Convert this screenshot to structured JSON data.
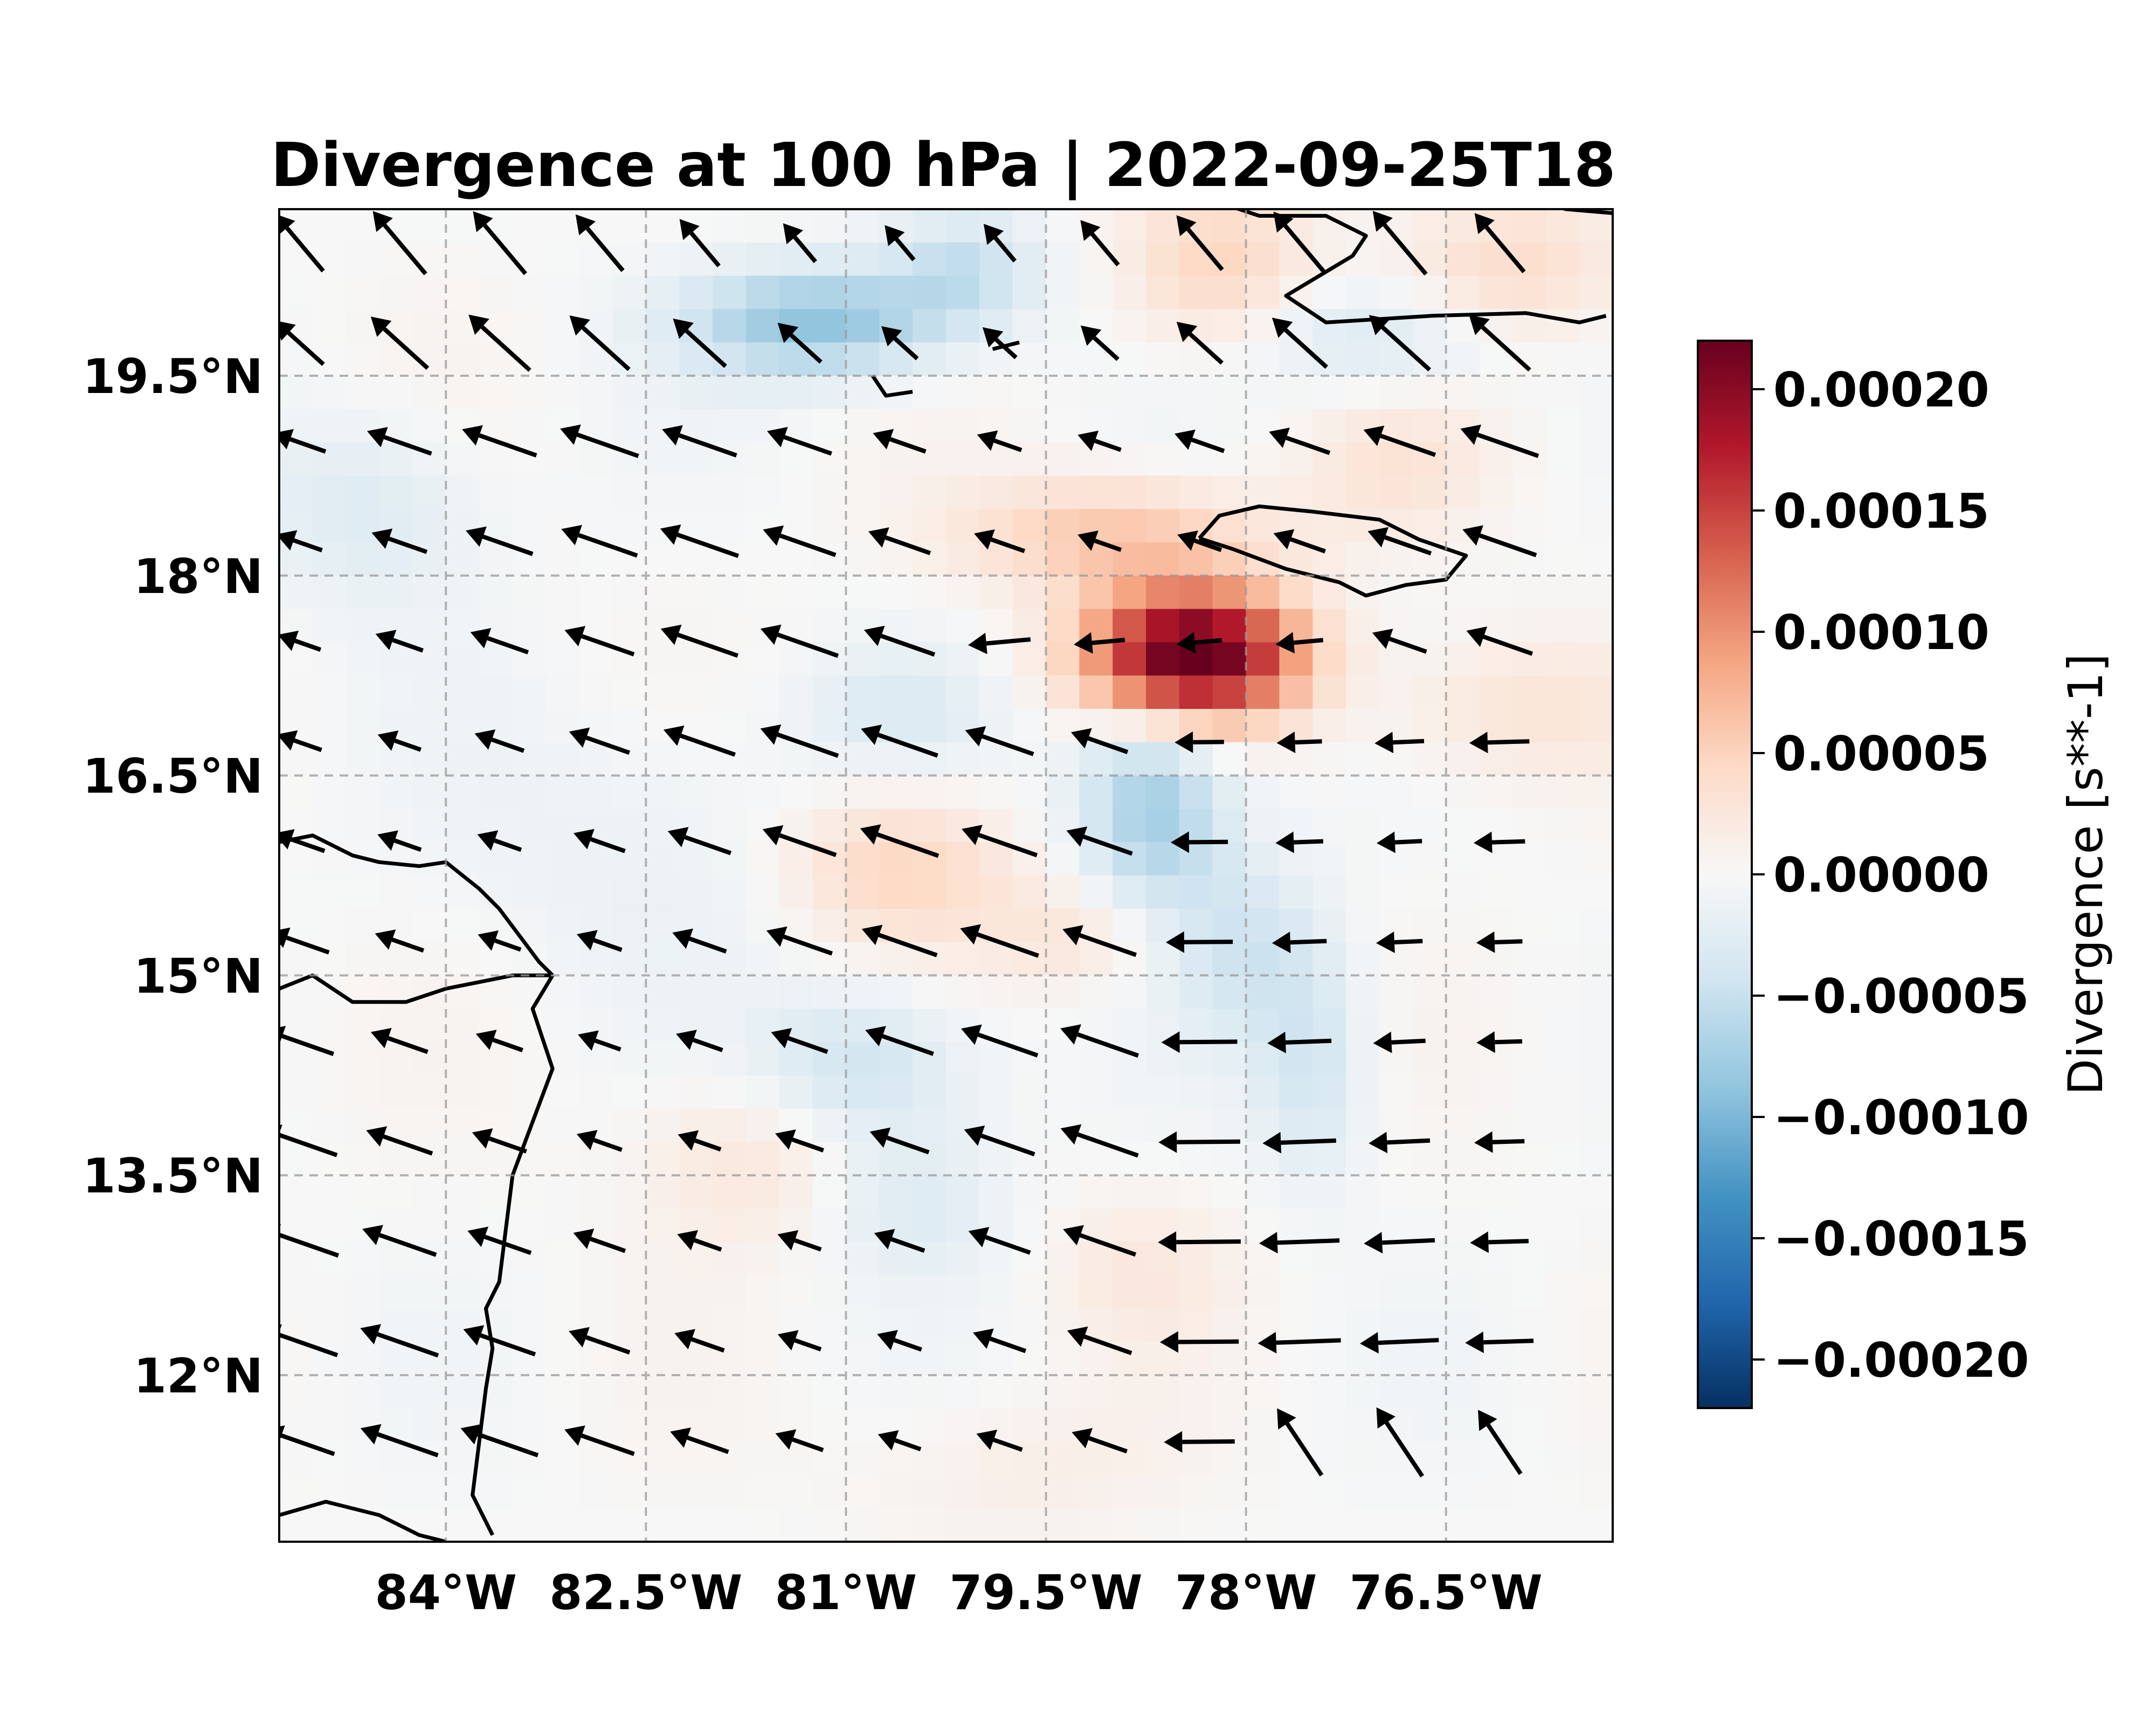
{
  "title": "Divergence at 100 hPa | 2022-09-25T18",
  "colorbar": {
    "label": "Divergence [s**-1]",
    "ticks": [
      {
        "value": 0.0002,
        "label": "0.00020"
      },
      {
        "value": 0.00015,
        "label": "0.00015"
      },
      {
        "value": 0.0001,
        "label": "0.00010"
      },
      {
        "value": 5e-05,
        "label": "0.00005"
      },
      {
        "value": 0.0,
        "label": "0.00000"
      },
      {
        "value": -5e-05,
        "label": "−0.00005"
      },
      {
        "value": -0.0001,
        "label": "−0.00010"
      },
      {
        "value": -0.00015,
        "label": "−0.00015"
      },
      {
        "value": -0.0002,
        "label": "−0.00020"
      }
    ],
    "range": [
      -0.00022,
      0.00022
    ],
    "colormap": "RdBu_r"
  },
  "map": {
    "lon_range": [
      -85.25,
      -75.25
    ],
    "lat_range": [
      10.75,
      20.75
    ],
    "lon_ticks": [
      {
        "value": -84,
        "label": "84°W"
      },
      {
        "value": -82.5,
        "label": "82.5°W"
      },
      {
        "value": -81,
        "label": "81°W"
      },
      {
        "value": -79.5,
        "label": "79.5°W"
      },
      {
        "value": -78,
        "label": "78°W"
      },
      {
        "value": -76.5,
        "label": "76.5°W"
      }
    ],
    "lat_ticks": [
      {
        "value": 19.5,
        "label": "19.5°N"
      },
      {
        "value": 18,
        "label": "18°N"
      },
      {
        "value": 16.5,
        "label": "16.5°N"
      },
      {
        "value": 15,
        "label": "15°N"
      },
      {
        "value": 13.5,
        "label": "13.5°N"
      },
      {
        "value": 12,
        "label": "12°N"
      }
    ],
    "gridlines": true,
    "coastline_color": "#000000",
    "wind_vectors": "black arrows, predominantly from the east-southeast"
  },
  "chart_data": {
    "type": "heatmap",
    "title": "Divergence at 100 hPa | 2022-09-25T18",
    "variable": "Divergence",
    "units": "s**-1",
    "pressure_level": "100 hPa",
    "valid_time": "2022-09-25T18",
    "xlim": [
      -85.25,
      -75.25
    ],
    "ylim": [
      10.75,
      20.75
    ],
    "vmin": -0.00022,
    "vmax": 0.00022,
    "features": [
      {
        "lon": -78.4,
        "lat": 17.4,
        "amp": 0.00024,
        "sx": 0.55,
        "sy": 0.35
      },
      {
        "lon": -79.0,
        "lat": 18.3,
        "amp": 6e-05,
        "sx": 0.8,
        "sy": 0.3
      },
      {
        "lon": -78.2,
        "lat": 20.3,
        "amp": 5e-05,
        "sx": 0.5,
        "sy": 0.45
      },
      {
        "lon": -76.0,
        "lat": 20.3,
        "amp": 4e-05,
        "sx": 0.6,
        "sy": 0.4
      },
      {
        "lon": -80.6,
        "lat": 15.8,
        "amp": 5e-05,
        "sx": 0.6,
        "sy": 0.4
      },
      {
        "lon": -79.2,
        "lat": 15.3,
        "amp": 3e-05,
        "sx": 0.5,
        "sy": 0.3
      },
      {
        "lon": -81.7,
        "lat": 13.7,
        "amp": 3e-05,
        "sx": 0.6,
        "sy": 0.5
      },
      {
        "lon": -76.0,
        "lat": 17.0,
        "amp": 3e-05,
        "sx": 0.7,
        "sy": 0.4
      },
      {
        "lon": -76.9,
        "lat": 18.8,
        "amp": 2.5e-05,
        "sx": 0.5,
        "sy": 0.4
      },
      {
        "lon": -78.8,
        "lat": 12.8,
        "amp": 2e-05,
        "sx": 0.5,
        "sy": 0.4
      },
      {
        "lon": -79.8,
        "lat": 11.3,
        "amp": 1.5e-05,
        "sx": 0.8,
        "sy": 0.4
      },
      {
        "lon": -81.2,
        "lat": 19.9,
        "amp": -9e-05,
        "sx": 0.7,
        "sy": 0.3
      },
      {
        "lon": -80.1,
        "lat": 20.3,
        "amp": -5e-05,
        "sx": 0.4,
        "sy": 0.3
      },
      {
        "lon": -78.7,
        "lat": 16.3,
        "amp": -8e-05,
        "sx": 0.4,
        "sy": 0.6
      },
      {
        "lon": -78.0,
        "lat": 15.2,
        "amp": -4e-05,
        "sx": 0.4,
        "sy": 0.5
      },
      {
        "lon": -77.5,
        "lat": 14.3,
        "amp": -4e-05,
        "sx": 0.3,
        "sy": 0.6
      },
      {
        "lon": -80.9,
        "lat": 14.3,
        "amp": -5e-05,
        "sx": 0.6,
        "sy": 0.4
      },
      {
        "lon": -80.5,
        "lat": 13.3,
        "amp": -3e-05,
        "sx": 0.5,
        "sy": 0.4
      },
      {
        "lon": -77.0,
        "lat": 19.8,
        "amp": -4e-05,
        "sx": 0.7,
        "sy": 0.3
      },
      {
        "lon": -84.6,
        "lat": 18.5,
        "amp": -3e-05,
        "sx": 0.6,
        "sy": 0.5
      },
      {
        "lon": -80.6,
        "lat": 17.0,
        "amp": -2.5e-05,
        "sx": 0.5,
        "sy": 0.3
      },
      {
        "lon": -82.5,
        "lat": 16.0,
        "amp": -1.5e-05,
        "sx": 1.0,
        "sy": 0.8
      }
    ]
  }
}
